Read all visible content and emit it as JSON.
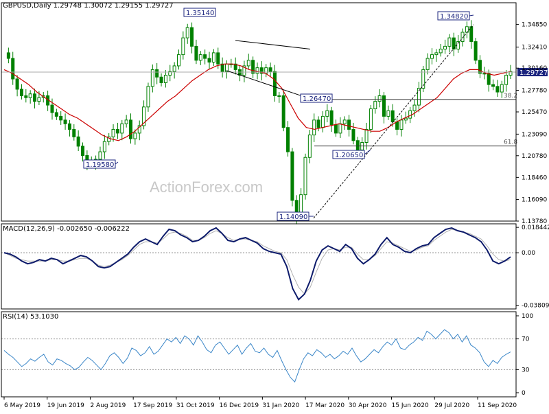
{
  "chart_data": [
    {
      "type": "candlestick",
      "symbol": "GBPUSD,Daily",
      "ohlc_label": "1.29748 1.30072 1.29155 1.29727",
      "current_price": "1.29727",
      "ylim": [
        1.1378,
        1.3716
      ],
      "y_ticks": [
        "1.34850",
        "1.32410",
        "1.30160",
        "1.27780",
        "1.25470",
        "1.23090",
        "1.20780",
        "1.18460",
        "1.16090",
        "1.13780"
      ],
      "x_ticks": [
        "6 May 2019",
        "19 Jun 2019",
        "2 Aug 2019",
        "17 Sep 2019",
        "31 Oct 2019",
        "16 Dec 2019",
        "31 Jan 2020",
        "17 Mar 2020",
        "30 Apr 2020",
        "15 Jun 2020",
        "29 Jul 2020",
        "11 Sep 2020"
      ],
      "close_path": [
        1.318,
        1.312,
        1.29,
        1.279,
        1.272,
        1.27,
        1.274,
        1.266,
        1.27,
        1.272,
        1.262,
        1.254,
        1.25,
        1.246,
        1.242,
        1.236,
        1.228,
        1.218,
        1.208,
        1.2,
        1.198,
        1.204,
        1.212,
        1.223,
        1.228,
        1.236,
        1.232,
        1.242,
        1.246,
        1.226,
        1.232,
        1.24,
        1.26,
        1.282,
        1.3,
        1.292,
        1.286,
        1.294,
        1.298,
        1.304,
        1.316,
        1.334,
        1.345,
        1.325,
        1.31,
        1.316,
        1.312,
        1.308,
        1.318,
        1.306,
        1.298,
        1.306,
        1.306,
        1.3,
        1.294,
        1.304,
        1.31,
        1.296,
        1.302,
        1.296,
        1.302,
        1.298,
        1.272,
        1.272,
        1.238,
        1.212,
        1.16,
        1.142,
        1.166,
        1.206,
        1.23,
        1.246,
        1.238,
        1.25,
        1.256,
        1.241,
        1.232,
        1.242,
        1.246,
        1.236,
        1.224,
        1.214,
        1.222,
        1.236,
        1.258,
        1.266,
        1.272,
        1.25,
        1.256,
        1.244,
        1.236,
        1.246,
        1.248,
        1.256,
        1.262,
        1.28,
        1.3,
        1.312,
        1.316,
        1.318,
        1.322,
        1.325,
        1.334,
        1.322,
        1.33,
        1.34,
        1.346,
        1.33,
        1.31,
        1.296,
        1.296,
        1.284,
        1.282,
        1.276,
        1.284,
        1.294,
        1.298
      ],
      "ma_path": [
        1.3,
        1.296,
        1.29,
        1.284,
        1.276,
        1.27,
        1.264,
        1.258,
        1.252,
        1.248,
        1.242,
        1.236,
        1.23,
        1.226,
        1.224,
        1.228,
        1.234,
        1.242,
        1.25,
        1.258,
        1.266,
        1.272,
        1.28,
        1.288,
        1.294,
        1.3,
        1.304,
        1.306,
        1.306,
        1.304,
        1.3,
        1.298,
        1.296,
        1.29,
        1.28,
        1.264,
        1.248,
        1.238,
        1.236,
        1.238,
        1.24,
        1.242,
        1.24,
        1.238,
        1.236,
        1.234,
        1.234,
        1.238,
        1.244,
        1.248,
        1.252,
        1.258,
        1.264,
        1.27,
        1.28,
        1.29,
        1.296,
        1.3,
        1.3,
        1.296,
        1.294,
        1.296,
        1.298
      ],
      "callouts": [
        {
          "label": "1.35140",
          "value": 1.3514
        },
        {
          "label": "1.34820",
          "value": 1.3482
        },
        {
          "label": "1.26470",
          "value": 1.2647
        },
        {
          "label": "1.20650",
          "value": 1.2065
        },
        {
          "label": "1.19580",
          "value": 1.1958
        },
        {
          "label": "1.14090",
          "value": 1.1409
        }
      ],
      "fib_levels": [
        {
          "label": "38.2",
          "value": 1.268
        },
        {
          "label": "61.8",
          "value": 1.2182
        }
      ],
      "horizontal_line": 1.2973,
      "watermark": "ActionForex.com",
      "colors": {
        "candle": "#008000",
        "ma": "#cc0000",
        "callout_border": "#1a237e",
        "current_price_bg": "#1a237e",
        "grid": "#aaaaaa"
      }
    },
    {
      "type": "line",
      "name": "MACD(12,26,9)",
      "label": "MACD(12,26,9) -0.002650 -0.006222",
      "y_ticks": [
        "0.018442",
        "0.00",
        "-0.038095"
      ],
      "ylim": [
        -0.0408,
        0.021
      ],
      "macd": [
        0.0,
        -0.001,
        -0.003,
        -0.006,
        -0.008,
        -0.007,
        -0.005,
        -0.006,
        -0.004,
        -0.005,
        -0.008,
        -0.006,
        -0.004,
        -0.002,
        -0.003,
        -0.006,
        -0.01,
        -0.011,
        -0.01,
        -0.007,
        -0.004,
        -0.001,
        0.004,
        0.008,
        0.01,
        0.008,
        0.006,
        0.012,
        0.017,
        0.016,
        0.013,
        0.011,
        0.008,
        0.009,
        0.012,
        0.016,
        0.018,
        0.014,
        0.009,
        0.008,
        0.01,
        0.011,
        0.009,
        0.007,
        0.003,
        0.001,
        0.0,
        -0.001,
        -0.01,
        -0.026,
        -0.034,
        -0.03,
        -0.02,
        -0.006,
        0.002,
        0.005,
        0.003,
        0.001,
        0.006,
        0.003,
        -0.004,
        -0.008,
        -0.005,
        -0.001,
        0.006,
        0.011,
        0.006,
        0.004,
        0.001,
        0.0,
        0.003,
        0.005,
        0.006,
        0.011,
        0.014,
        0.017,
        0.018,
        0.016,
        0.015,
        0.013,
        0.011,
        0.008,
        0.002,
        -0.006,
        -0.008,
        -0.006,
        -0.003
      ],
      "signal": [
        0.0,
        -0.002,
        -0.004,
        -0.005,
        -0.006,
        -0.006,
        -0.006,
        -0.006,
        -0.005,
        -0.005,
        -0.006,
        -0.006,
        -0.005,
        -0.004,
        -0.004,
        -0.006,
        -0.009,
        -0.01,
        -0.009,
        -0.007,
        -0.005,
        -0.002,
        0.002,
        0.006,
        0.008,
        0.008,
        0.007,
        0.01,
        0.014,
        0.015,
        0.014,
        0.012,
        0.009,
        0.009,
        0.011,
        0.014,
        0.016,
        0.014,
        0.011,
        0.009,
        0.01,
        0.01,
        0.009,
        0.008,
        0.005,
        0.003,
        0.001,
        0.0,
        -0.005,
        -0.016,
        -0.025,
        -0.03,
        -0.025,
        -0.014,
        -0.004,
        0.002,
        0.003,
        0.002,
        0.004,
        0.004,
        -0.001,
        -0.005,
        -0.005,
        -0.002,
        0.003,
        0.008,
        0.007,
        0.005,
        0.003,
        0.001,
        0.002,
        0.004,
        0.005,
        0.009,
        0.012,
        0.015,
        0.017,
        0.016,
        0.015,
        0.014,
        0.012,
        0.01,
        0.005,
        -0.001,
        -0.005,
        -0.006,
        -0.005
      ],
      "colors": {
        "macd": "#0d1b6b",
        "signal": "#b0b0b0"
      }
    },
    {
      "type": "line",
      "name": "RSI(14)",
      "label": "RSI(14) 53.1030",
      "y_ticks": [
        "100",
        "70",
        "30",
        "0"
      ],
      "ylim": [
        0,
        100
      ],
      "levels": [
        70,
        30
      ],
      "rsi": [
        55,
        50,
        46,
        40,
        34,
        38,
        44,
        41,
        46,
        50,
        40,
        36,
        44,
        42,
        38,
        35,
        30,
        33,
        40,
        46,
        42,
        36,
        30,
        38,
        48,
        52,
        46,
        38,
        45,
        58,
        55,
        48,
        52,
        60,
        50,
        54,
        62,
        70,
        66,
        72,
        64,
        74,
        70,
        62,
        74,
        66,
        56,
        52,
        62,
        66,
        58,
        50,
        56,
        62,
        50,
        58,
        64,
        54,
        52,
        58,
        50,
        46,
        55,
        42,
        30,
        20,
        14,
        30,
        44,
        52,
        48,
        56,
        52,
        46,
        50,
        44,
        48,
        54,
        50,
        58,
        48,
        40,
        44,
        50,
        56,
        52,
        60,
        66,
        62,
        70,
        58,
        56,
        62,
        66,
        72,
        68,
        80,
        76,
        70,
        76,
        82,
        78,
        70,
        76,
        66,
        74,
        62,
        58,
        52,
        40,
        34,
        42,
        38,
        46,
        50,
        53
      ],
      "colors": {
        "rsi": "#3a86c8",
        "levels": "#999999"
      }
    }
  ]
}
